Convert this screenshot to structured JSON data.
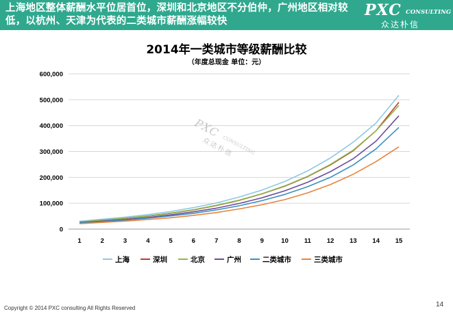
{
  "header": {
    "title": "上海地区整体薪酬水平位居首位，深圳和北京地区不分伯仲，广州地区相对较低，以杭州、天津为代表的二类城市薪酬涨幅较快",
    "logo_main": "PXC",
    "logo_sub": "CONSULTING",
    "logo_cn": "众达朴信"
  },
  "watermark": {
    "main": "PXC",
    "sub": "CONSULTING",
    "cn": "众达朴信"
  },
  "chart_data": {
    "type": "line",
    "title": "2014年一类城市等级薪酬比较",
    "subtitle": "（年度总现金 单位：元）",
    "x": [
      1,
      2,
      3,
      4,
      5,
      6,
      7,
      8,
      9,
      10,
      11,
      12,
      13,
      14,
      15
    ],
    "ylim": [
      0,
      600000
    ],
    "yticks": [
      0,
      100000,
      200000,
      300000,
      400000,
      500000,
      600000
    ],
    "ytick_labels": [
      "0",
      "100,000",
      "200,000",
      "300,000",
      "400,000",
      "500,000",
      "600,000"
    ],
    "grid": true,
    "legend_position": "bottom",
    "series": [
      {
        "name": "上海",
        "color": "#8fc7e4",
        "values": [
          30000,
          38000,
          46000,
          56000,
          68000,
          83000,
          101000,
          124000,
          151000,
          184000,
          225000,
          275000,
          336000,
          410000,
          517000
        ]
      },
      {
        "name": "深圳",
        "color": "#c0392b",
        "values": [
          27000,
          34000,
          41000,
          50000,
          61000,
          74000,
          91000,
          111000,
          136000,
          166000,
          203000,
          248000,
          303000,
          380000,
          490000
        ]
      },
      {
        "name": "北京",
        "color": "#8bb84a",
        "values": [
          28000,
          35000,
          42000,
          51000,
          62000,
          75000,
          92000,
          112000,
          137000,
          167000,
          204000,
          250000,
          305000,
          380000,
          478000
        ]
      },
      {
        "name": "广州",
        "color": "#6a4b9a",
        "values": [
          25000,
          31000,
          37000,
          45000,
          55000,
          67000,
          81000,
          99000,
          121000,
          148000,
          181000,
          222000,
          272000,
          340000,
          438000
        ]
      },
      {
        "name": "二类城市",
        "color": "#3a8fc0",
        "values": [
          24000,
          29000,
          35000,
          42000,
          51000,
          61000,
          74000,
          90000,
          110000,
          134000,
          164000,
          200000,
          248000,
          310000,
          393000
        ]
      },
      {
        "name": "三类城市",
        "color": "#e8833a",
        "values": [
          21000,
          26000,
          31000,
          37000,
          44000,
          53000,
          64000,
          78000,
          94000,
          114000,
          140000,
          172000,
          212000,
          261000,
          318000
        ]
      }
    ]
  },
  "footer": {
    "copyright": "Copyright © 2014 PXC consulting All Rights Reserved",
    "page": "14"
  }
}
